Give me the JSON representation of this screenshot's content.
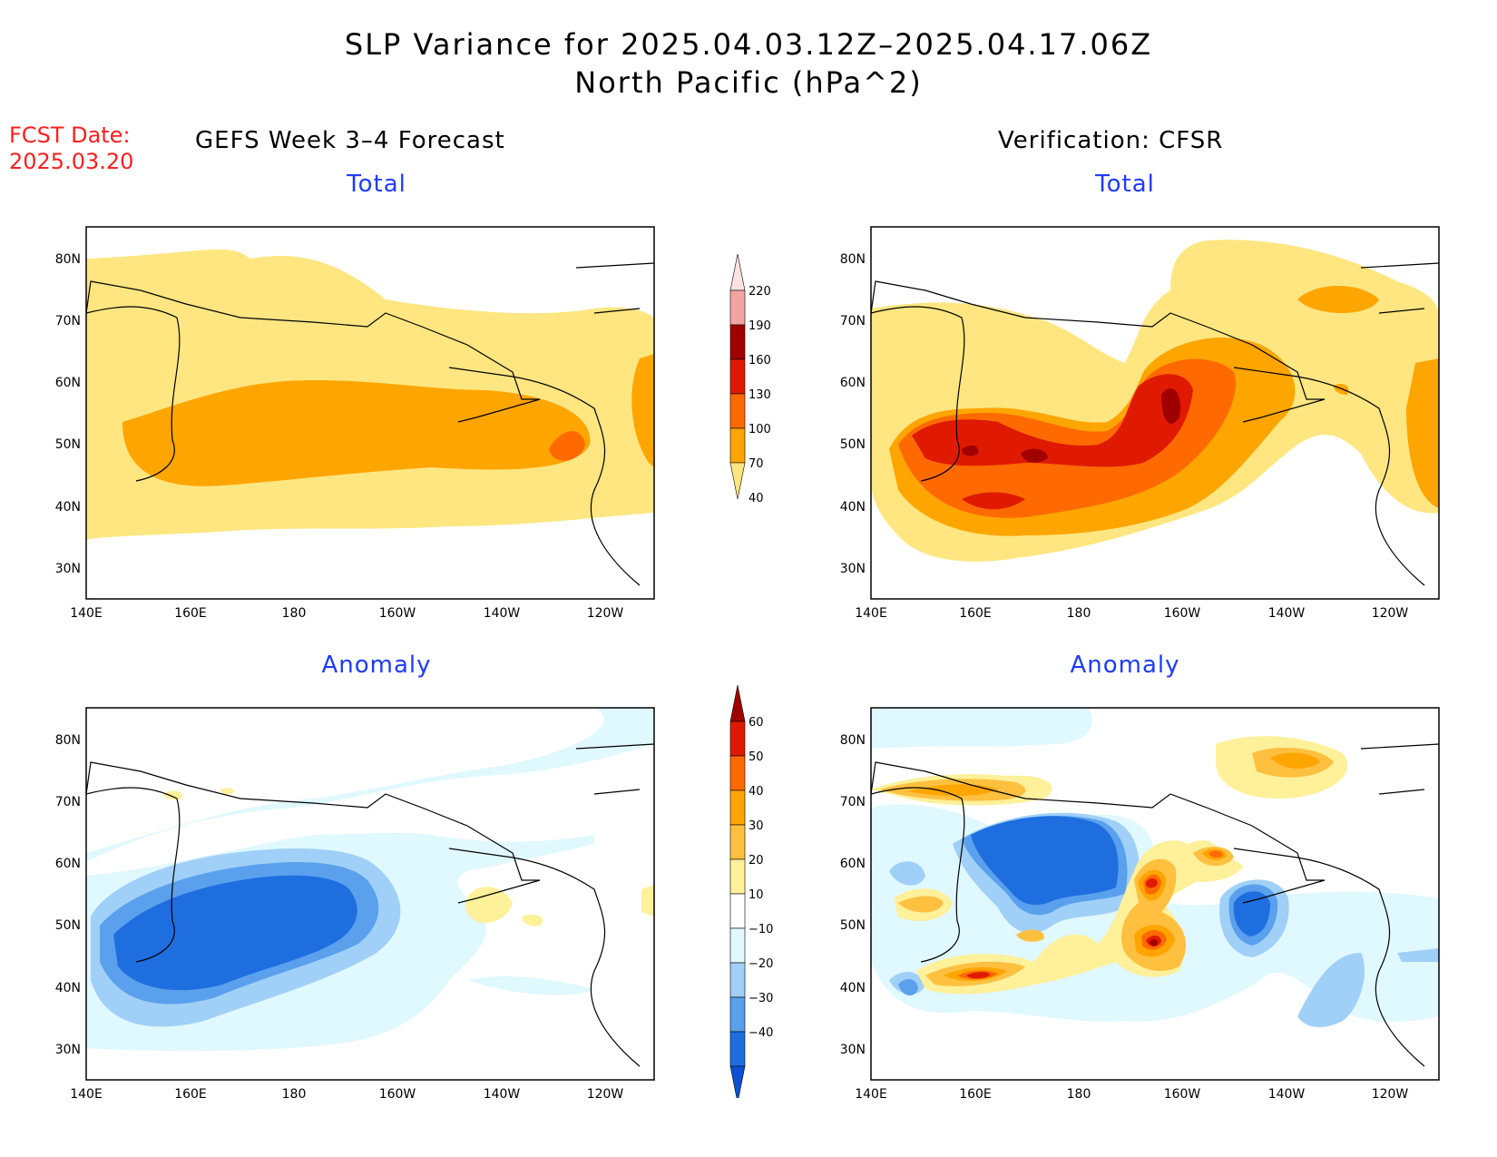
{
  "header": {
    "title_line1": "SLP Variance for 2025.04.03.12Z–2025.04.17.06Z",
    "title_line2": "North Pacific (hPa^2)",
    "fcst_label": "FCST Date:",
    "fcst_date": "2025.03.20"
  },
  "columns": {
    "left": "GEFS Week 3–4 Forecast",
    "right": "Verification: CFSR"
  },
  "panels": [
    {
      "id": "gefs-total",
      "title": "Total"
    },
    {
      "id": "cfsr-total",
      "title": "Total"
    },
    {
      "id": "gefs-anomaly",
      "title": "Anomaly"
    },
    {
      "id": "cfsr-anomaly",
      "title": "Anomaly"
    }
  ],
  "axes": {
    "lon_labels": [
      "140E",
      "160E",
      "180",
      "160W",
      "140W",
      "120W"
    ],
    "lat_labels": [
      "80N",
      "70N",
      "60N",
      "50N",
      "40N",
      "30N"
    ]
  },
  "colorbars": {
    "total": {
      "levels": [
        "220",
        "190",
        "160",
        "130",
        "100",
        "70",
        "40"
      ],
      "colors": [
        "#fde2e2",
        "#f4a3a3",
        "#a00000",
        "#e01a00",
        "#ff6a00",
        "#ffa500",
        "#ffe680"
      ]
    },
    "anomaly": {
      "levels": [
        "60",
        "50",
        "40",
        "30",
        "20",
        "10",
        "−10",
        "−20",
        "−30",
        "−40"
      ],
      "colors": [
        "#a00000",
        "#e01a00",
        "#ff6a00",
        "#ffa500",
        "#ffc040",
        "#fff09a",
        "#ffffff",
        "#e0f8ff",
        "#a0d0f8",
        "#5aa0ec",
        "#1e6ee0",
        "#0a50d0"
      ]
    }
  },
  "palette": {
    "t40": "#ffe680",
    "t70": "#ffa500",
    "t100": "#ff6a00",
    "t130": "#e01a00",
    "t160": "#a00000",
    "a10": "#fff09a",
    "a20": "#ffc040",
    "a30": "#ffa500",
    "a40": "#ff6a00",
    "a50": "#e01a00",
    "a60": "#a00000",
    "n10": "#e0f8ff",
    "n20": "#a0d0f8",
    "n30": "#5aa0ec",
    "n40": "#1e6ee0"
  }
}
